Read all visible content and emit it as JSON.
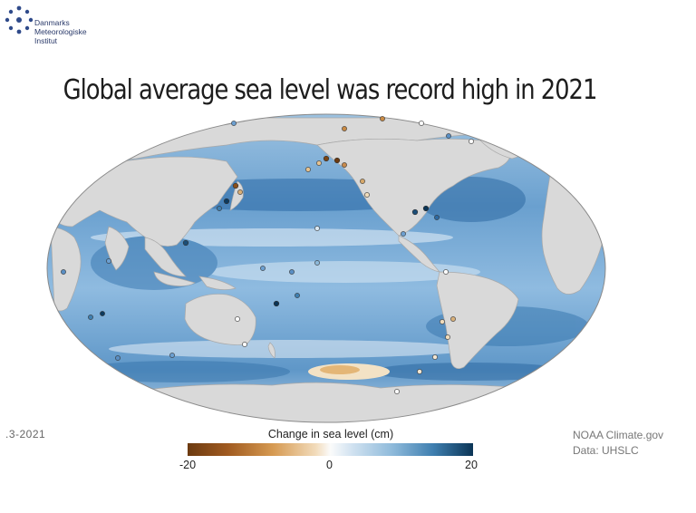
{
  "logo": {
    "name": "dmi-logo",
    "lines": [
      "Danmarks",
      "Meteorologiske",
      "Institut"
    ]
  },
  "title": "Global average sea level was record high in 2021",
  "date_fragment": ".3-2021",
  "legend": {
    "title": "Change in sea level (cm)",
    "ticks": [
      "-20",
      "0",
      "20"
    ],
    "range": [
      -20,
      20
    ],
    "colors": {
      "low": "#6b3a10",
      "mid": "#fbfbfb",
      "high": "#0b3556"
    }
  },
  "credit": {
    "line1": "NOAA Climate.gov",
    "line2": "Data: UHSLC"
  },
  "map": {
    "projection": "mollweide",
    "land_color": "#d9d9d9",
    "ocean_color": "#8cb8dc"
  }
}
